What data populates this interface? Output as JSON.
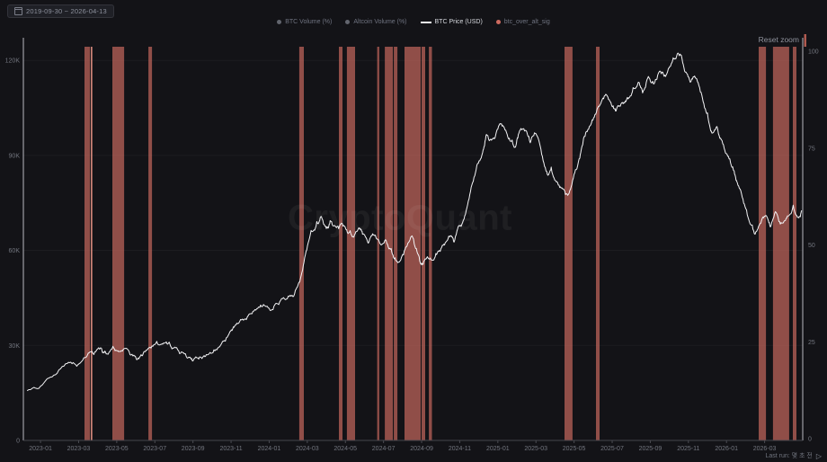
{
  "header": {
    "date_range": "2019-09-30 ~ 2026-04-13",
    "reset_zoom_label": "Reset zoom"
  },
  "footer": {
    "last_run_label": "Last run: 몇 초 전",
    "play_icon": "▷"
  },
  "watermark": "CryptoQuant",
  "colors": {
    "background": "#131317",
    "band": "#c0655c",
    "band_bright": "#e29183",
    "price_line": "#f4f4f6",
    "axis_line": "#b9bac2",
    "bottom_axis_line": "#46474e",
    "tick_label": "#73767f",
    "legend_dim": "#6f7380",
    "legend_active": "#d6d8de"
  },
  "legend": [
    {
      "label": "BTC Volume (%)",
      "marker": "circle",
      "color": "#62656e",
      "active": false
    },
    {
      "label": "Altcoin Volume (%)",
      "marker": "circle",
      "color": "#62656e",
      "active": false
    },
    {
      "label": "BTC Price (USD)",
      "marker": "line",
      "color": "#f2f2f4",
      "active": true
    },
    {
      "label": "btc_over_alt_sig",
      "marker": "circle",
      "color": "#cd6a5f",
      "active": false
    }
  ],
  "chart_data": {
    "type": "line",
    "title": "",
    "x_axis": {
      "type": "time",
      "months_domain": [
        -0.9,
        40.0
      ],
      "tick_months": [
        0,
        2,
        4,
        6,
        8,
        10,
        12,
        14,
        16,
        18,
        20,
        22,
        24,
        26,
        28,
        30,
        32,
        34,
        36,
        38
      ],
      "tick_labels": [
        "2023-01",
        "2023-03",
        "2023-05",
        "2023-07",
        "2023-09",
        "2023-11",
        "2024-01",
        "2024-03",
        "2024-05",
        "2024-07",
        "2024-09",
        "2024-11",
        "2025-01",
        "2025-03",
        "2025-05",
        "2025-07",
        "2025-09",
        "2025-11",
        "2026-01",
        "2026-03"
      ]
    },
    "y_axis_left": {
      "unit": "USD",
      "max": 124300,
      "tick_values": [
        0,
        30000,
        60000,
        90000,
        120000
      ],
      "tick_labels": [
        "0",
        "30K",
        "60K",
        "90K",
        "120K"
      ]
    },
    "y_axis_right": {
      "unit": "%",
      "max": 100,
      "tick_values": [
        0,
        25,
        50,
        75,
        100
      ],
      "tick_labels": [
        "0",
        "25",
        "50",
        "75",
        "100"
      ]
    },
    "series": [
      {
        "name": "BTC Price (USD)",
        "color": "#f4f4f6",
        "points_month_priceK": [
          [
            -0.7,
            15.7
          ],
          [
            0,
            17.1
          ],
          [
            0.7,
            20.6
          ],
          [
            1.4,
            24.3
          ],
          [
            1.9,
            23.4
          ],
          [
            2.4,
            26.3
          ],
          [
            2.8,
            27.1
          ],
          [
            3.2,
            29.1
          ],
          [
            3.4,
            28.0
          ],
          [
            3.8,
            29.7
          ],
          [
            4.1,
            28.0
          ],
          [
            4.5,
            29.1
          ],
          [
            4.9,
            26.9
          ],
          [
            5.2,
            26.3
          ],
          [
            5.5,
            28.0
          ],
          [
            5.9,
            29.7
          ],
          [
            6.3,
            30.3
          ],
          [
            6.6,
            31.1
          ],
          [
            6.9,
            28.9
          ],
          [
            7.3,
            27.4
          ],
          [
            7.7,
            26.0
          ],
          [
            8.0,
            25.1
          ],
          [
            8.4,
            26.3
          ],
          [
            8.7,
            27.1
          ],
          [
            9.1,
            28.6
          ],
          [
            9.5,
            30.6
          ],
          [
            9.9,
            33.7
          ],
          [
            10.2,
            36.3
          ],
          [
            10.6,
            38.3
          ],
          [
            11.0,
            40.0
          ],
          [
            11.4,
            41.7
          ],
          [
            11.7,
            42.9
          ],
          [
            12.1,
            41.1
          ],
          [
            12.5,
            42.9
          ],
          [
            12.9,
            44.6
          ],
          [
            13.3,
            45.7
          ],
          [
            13.6,
            50.0
          ],
          [
            13.9,
            58.6
          ],
          [
            14.2,
            66.3
          ],
          [
            14.5,
            69.1
          ],
          [
            14.7,
            70.6
          ],
          [
            15.0,
            66.9
          ],
          [
            15.2,
            69.4
          ],
          [
            15.5,
            67.4
          ],
          [
            15.8,
            68.6
          ],
          [
            16.1,
            65.7
          ],
          [
            16.4,
            64.3
          ],
          [
            16.7,
            67.1
          ],
          [
            16.9,
            65.1
          ],
          [
            17.2,
            62.3
          ],
          [
            17.5,
            64.9
          ],
          [
            17.8,
            62.3
          ],
          [
            18.1,
            63.4
          ],
          [
            18.4,
            60.6
          ],
          [
            18.6,
            57.7
          ],
          [
            18.9,
            56.9
          ],
          [
            19.2,
            61.1
          ],
          [
            19.5,
            64.6
          ],
          [
            19.8,
            58.9
          ],
          [
            20.0,
            55.4
          ],
          [
            20.3,
            58.0
          ],
          [
            20.6,
            56.9
          ],
          [
            20.9,
            59.7
          ],
          [
            21.2,
            61.7
          ],
          [
            21.5,
            64.6
          ],
          [
            21.7,
            62.6
          ],
          [
            22.0,
            67.7
          ],
          [
            22.3,
            71.4
          ],
          [
            22.6,
            80.0
          ],
          [
            22.9,
            86.9
          ],
          [
            23.2,
            90.9
          ],
          [
            23.4,
            96.6
          ],
          [
            23.7,
            95.1
          ],
          [
            24.0,
            98.3
          ],
          [
            24.3,
            99.1
          ],
          [
            24.6,
            95.4
          ],
          [
            24.9,
            92.6
          ],
          [
            25.1,
            96.9
          ],
          [
            25.4,
            97.7
          ],
          [
            25.7,
            94.0
          ],
          [
            26.0,
            96.9
          ],
          [
            26.3,
            90.3
          ],
          [
            26.6,
            84.0
          ],
          [
            26.8,
            86.3
          ],
          [
            27.1,
            81.7
          ],
          [
            27.4,
            79.4
          ],
          [
            27.7,
            77.7
          ],
          [
            28.0,
            84.0
          ],
          [
            28.3,
            89.1
          ],
          [
            28.5,
            95.4
          ],
          [
            28.8,
            99.1
          ],
          [
            29.1,
            102.9
          ],
          [
            29.4,
            106.3
          ],
          [
            29.7,
            109.1
          ],
          [
            30.0,
            105.4
          ],
          [
            30.2,
            104.0
          ],
          [
            30.5,
            106.6
          ],
          [
            30.8,
            108.3
          ],
          [
            31.1,
            111.4
          ],
          [
            31.4,
            113.1
          ],
          [
            31.6,
            109.7
          ],
          [
            31.9,
            114.9
          ],
          [
            32.2,
            112.6
          ],
          [
            32.5,
            116.6
          ],
          [
            32.8,
            114.9
          ],
          [
            33.1,
            118.9
          ],
          [
            33.3,
            120.6
          ],
          [
            33.6,
            121.7
          ],
          [
            33.8,
            116.6
          ],
          [
            34.1,
            113.1
          ],
          [
            34.4,
            114.3
          ],
          [
            34.7,
            109.1
          ],
          [
            35.0,
            103.4
          ],
          [
            35.2,
            97.7
          ],
          [
            35.5,
            99.1
          ],
          [
            35.8,
            93.7
          ],
          [
            36.1,
            89.7
          ],
          [
            36.4,
            85.1
          ],
          [
            36.6,
            80.6
          ],
          [
            36.9,
            74.9
          ],
          [
            37.2,
            69.1
          ],
          [
            37.5,
            65.1
          ],
          [
            37.8,
            68.6
          ],
          [
            38.1,
            70.9
          ],
          [
            38.3,
            67.4
          ],
          [
            38.6,
            72.0
          ],
          [
            38.9,
            68.6
          ],
          [
            39.2,
            70.9
          ],
          [
            39.5,
            74.3
          ],
          [
            39.8,
            70.3
          ],
          [
            39.95,
            72.6
          ]
        ]
      }
    ],
    "bands": {
      "name": "btc_over_alt_sig",
      "color": "#c0655c",
      "ranges": [
        {
          "s": 2.31,
          "e": 2.6
        },
        {
          "s": 2.64,
          "e": 2.72,
          "bright": true
        },
        {
          "s": 3.77,
          "e": 4.39
        },
        {
          "s": 5.66,
          "e": 5.85
        },
        {
          "s": 13.58,
          "e": 13.82
        },
        {
          "s": 15.66,
          "e": 15.85
        },
        {
          "s": 16.08,
          "e": 16.51
        },
        {
          "s": 17.67,
          "e": 17.78
        },
        {
          "s": 18.07,
          "e": 18.49
        },
        {
          "s": 18.54,
          "e": 18.73
        },
        {
          "s": 19.1,
          "e": 19.95
        },
        {
          "s": 20.0,
          "e": 20.19
        },
        {
          "s": 20.38,
          "e": 20.54
        },
        {
          "s": 27.5,
          "e": 27.92
        },
        {
          "s": 29.15,
          "e": 29.34
        },
        {
          "s": 37.69,
          "e": 38.07
        },
        {
          "s": 38.44,
          "e": 39.29
        },
        {
          "s": 39.48,
          "e": 39.67
        }
      ]
    }
  }
}
